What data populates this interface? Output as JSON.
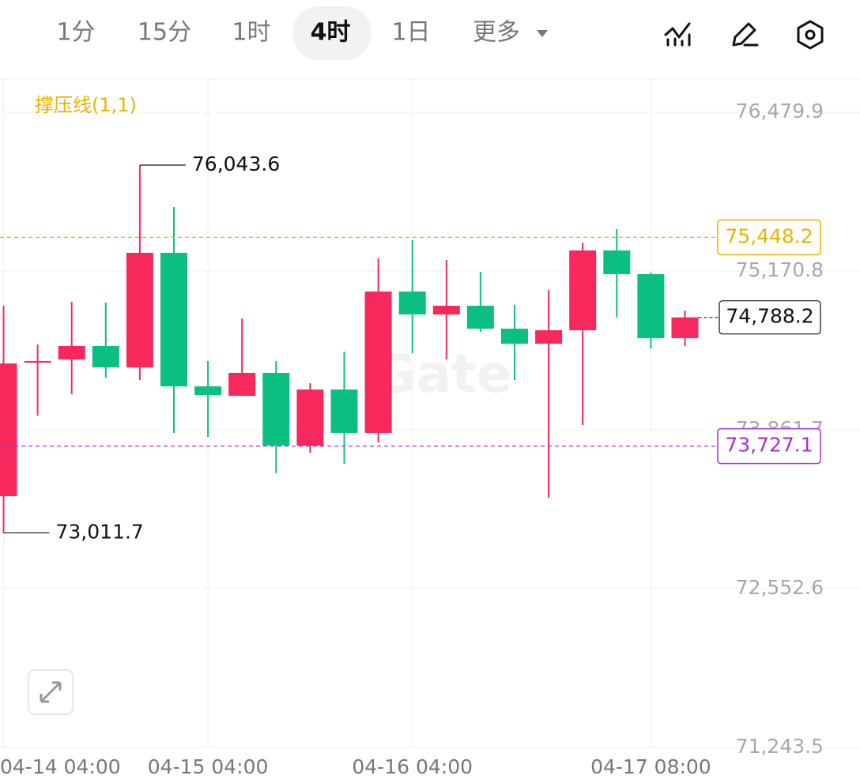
{
  "toolbar": {
    "intervals": [
      "1分",
      "15分",
      "1时",
      "4时",
      "1日",
      "更多"
    ],
    "active": 3
  },
  "chart_data": {
    "type": "candlestick",
    "indicator": "撑压线(1,1)",
    "watermark": "Gate",
    "categories": [
      "04-14 04:00",
      null,
      null,
      null,
      null,
      null,
      "04-15 04:00",
      null,
      null,
      null,
      null,
      null,
      "04-16 04:00",
      null,
      null,
      null,
      null,
      null,
      null,
      "04-17 08:00",
      null
    ],
    "open": [
      73314.6,
      74415.3,
      74441.3,
      74552.1,
      74376.2,
      75320.6,
      74219.9,
      74141.8,
      74330.6,
      73731.4,
      74193.8,
      73835.6,
      75001.5,
      74812.6,
      74884.2,
      74695.4,
      74571.6,
      74682.3,
      75340.1,
      75144.7,
      74617.2
    ],
    "high": [
      74884.2,
      74565.1,
      74916.8,
      74910.3,
      76043.6,
      75698.4,
      74428.3,
      74780.0,
      74428.3,
      74246.0,
      74506.5,
      75275.0,
      75424.8,
      75262.0,
      75164.3,
      74890.7,
      75014.5,
      75405.3,
      75516.0,
      75157.8,
      74845.1
    ],
    "low": [
      73011.7,
      73978.9,
      74154.8,
      74291.5,
      74272.0,
      73835.6,
      73803.1,
      74141.8,
      73503.5,
      73672.8,
      73581.6,
      73757.5,
      74493.4,
      74441.3,
      74669.3,
      74272.0,
      73301.6,
      73900.8,
      74788.2,
      74532.5,
      74552.1
    ],
    "close": [
      74408.8,
      74428.3,
      74552.1,
      74376.2,
      75320.6,
      74219.9,
      74148.3,
      74330.6,
      73731.4,
      74193.8,
      73835.6,
      75001.5,
      74812.6,
      74884.2,
      74695.4,
      74571.6,
      74682.3,
      75340.1,
      75144.7,
      74617.2,
      74788.2
    ],
    "up_color": "#f6285c",
    "down_color": "#0abf7f",
    "ylim": [
      71236.3,
      76753.4
    ],
    "yticks": [
      {
        "value": 71243.5,
        "label": "71,243.5"
      },
      {
        "value": 72552.6,
        "label": "72,552.6"
      },
      {
        "value": 73861.7,
        "label": "73,861.7"
      },
      {
        "value": 75170.8,
        "label": "75,170.8"
      },
      {
        "value": 76479.9,
        "label": "76,479.9"
      }
    ],
    "grid": true,
    "max_label": {
      "value": 76043.6,
      "label": "76,043.6"
    },
    "min_label": {
      "value": 73011.7,
      "label": "73,011.7"
    },
    "levels": [
      {
        "value": 75448.2,
        "label": "75,448.2",
        "color": "#e8b400"
      },
      {
        "value": 73727.1,
        "label": "73,727.1",
        "color": "#a531d0"
      }
    ],
    "last_price": {
      "value": 74788.2,
      "label": "74,788.2"
    }
  }
}
